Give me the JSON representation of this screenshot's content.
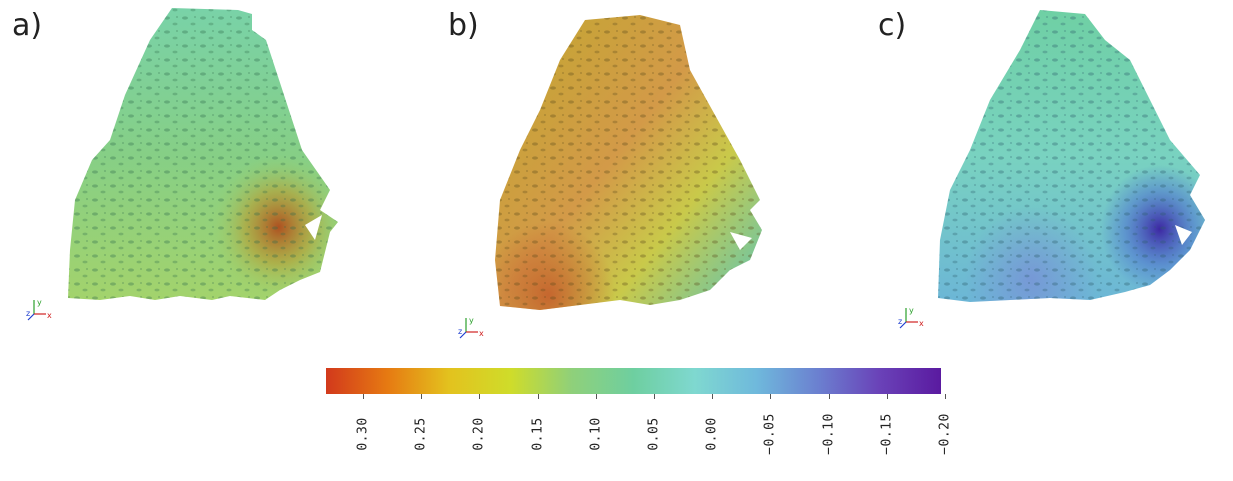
{
  "panels": [
    {
      "label": "a)",
      "axes": {
        "x": "x",
        "y": "y",
        "z": "z"
      }
    },
    {
      "label": "b)",
      "axes": {
        "x": "x",
        "y": "y",
        "z": "z"
      }
    },
    {
      "label": "c)",
      "axes": {
        "x": "x",
        "y": "y",
        "z": "z"
      }
    }
  ],
  "colorbar": {
    "ticks": [
      "0.30",
      "0.25",
      "0.20",
      "0.15",
      "0.10",
      "0.05",
      "0.00",
      "−0.05",
      "−0.10",
      "−0.15",
      "−0.20"
    ],
    "range": [
      0.33,
      -0.2
    ],
    "colors": [
      "#d2391c",
      "#e67a12",
      "#e3c21e",
      "#cfdc2a",
      "#8fd07a",
      "#6ecfa0",
      "#7fd8d0",
      "#6fb9dc",
      "#6b80d0",
      "#6a42b8",
      "#5a1aa0"
    ]
  }
}
